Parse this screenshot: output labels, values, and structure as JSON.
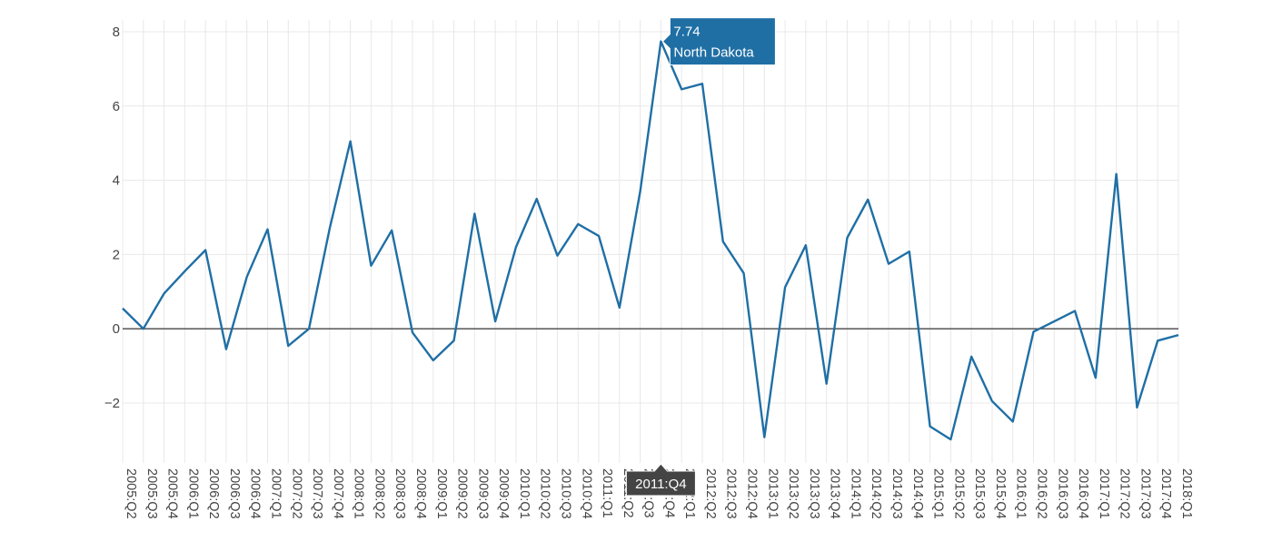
{
  "chart_data": {
    "type": "line",
    "title": "",
    "xlabel": "",
    "ylabel": "",
    "ylim": [
      -3.6,
      8.3
    ],
    "yticks": [
      -2,
      0,
      2,
      4,
      6,
      8
    ],
    "ytick_labels": [
      "−2",
      "0",
      "2",
      "4",
      "6",
      "8"
    ],
    "grid": true,
    "zero_line": true,
    "x": [
      "2005:Q2",
      "2005:Q3",
      "2005:Q4",
      "2006:Q1",
      "2006:Q2",
      "2006:Q3",
      "2006:Q4",
      "2007:Q1",
      "2007:Q2",
      "2007:Q3",
      "2007:Q4",
      "2008:Q1",
      "2008:Q2",
      "2008:Q3",
      "2008:Q4",
      "2009:Q1",
      "2009:Q2",
      "2009:Q3",
      "2009:Q4",
      "2010:Q1",
      "2010:Q2",
      "2010:Q3",
      "2010:Q4",
      "2011:Q1",
      "2011:Q2",
      "2011:Q3",
      "2011:Q4",
      "2012:Q1",
      "2012:Q2",
      "2012:Q3",
      "2012:Q4",
      "2013:Q1",
      "2013:Q2",
      "2013:Q3",
      "2013:Q4",
      "2014:Q1",
      "2014:Q2",
      "2014:Q3",
      "2014:Q4",
      "2015:Q1",
      "2015:Q2",
      "2015:Q3",
      "2015:Q4",
      "2016:Q1",
      "2016:Q2",
      "2016:Q3",
      "2016:Q4",
      "2017:Q1",
      "2017:Q2",
      "2017:Q3",
      "2017:Q4",
      "2018:Q1"
    ],
    "xtick_labels": [
      "2005:Q2",
      "2005:Q3",
      "2005:Q4",
      "2006:Q1",
      "2006:Q2",
      "2006:Q3",
      "2006:Q4",
      "2007:Q1",
      "2007:Q2",
      "2007:Q3",
      "2007:Q4",
      "2008:Q1",
      "2008:Q2",
      "2008:Q3",
      "2008:Q4",
      "2009:Q1",
      "2009:Q2",
      "2009:Q3",
      "2009:Q4",
      "2010:Q1",
      "2010:Q2",
      "2010:Q3",
      "2010:Q4",
      "2011:Q1",
      "2011:Q2",
      "2011:Q3",
      "2011:Q4",
      "2012:Q1",
      "2012:Q2",
      "2012:Q3",
      "2012:Q4",
      "2013:Q1",
      "2013:Q2",
      "2013:Q3",
      "2013:Q4",
      "2014:Q1",
      "2014:Q2",
      "2014:Q3",
      "2014:Q4",
      "2015:Q1",
      "2015:Q2",
      "2015:Q3",
      "2015:Q4",
      "2016:Q1",
      "2016:Q2",
      "2016:Q3",
      "2016:Q4",
      "2017:Q1",
      "2017:Q2",
      "2017:Q3",
      "2017:Q4",
      "2018:Q1"
    ],
    "series": [
      {
        "name": "North Dakota",
        "color": "#1f6fa5",
        "values": [
          0.55,
          0.0,
          0.95,
          1.55,
          2.12,
          -0.55,
          1.4,
          2.68,
          -0.46,
          0.0,
          2.7,
          5.05,
          1.7,
          2.65,
          -0.1,
          -0.85,
          -0.32,
          3.1,
          0.2,
          2.2,
          3.5,
          1.97,
          2.82,
          2.5,
          0.57,
          3.7,
          7.74,
          6.45,
          6.6,
          2.35,
          1.5,
          -2.92,
          1.12,
          2.25,
          -1.48,
          2.45,
          3.48,
          1.75,
          2.08,
          -2.63,
          -2.98,
          -0.75,
          -1.95,
          -2.5,
          -0.08,
          0.2,
          0.48,
          -1.32,
          4.17,
          -2.12,
          -0.32,
          -0.17
        ]
      }
    ],
    "hover": {
      "index": 26,
      "value_label": "7.74",
      "series_label": "North Dakota",
      "x_label": "2011:Q4"
    },
    "colors": {
      "tooltip_bg": "#1f6fa5",
      "xtip_bg": "#444444"
    }
  }
}
